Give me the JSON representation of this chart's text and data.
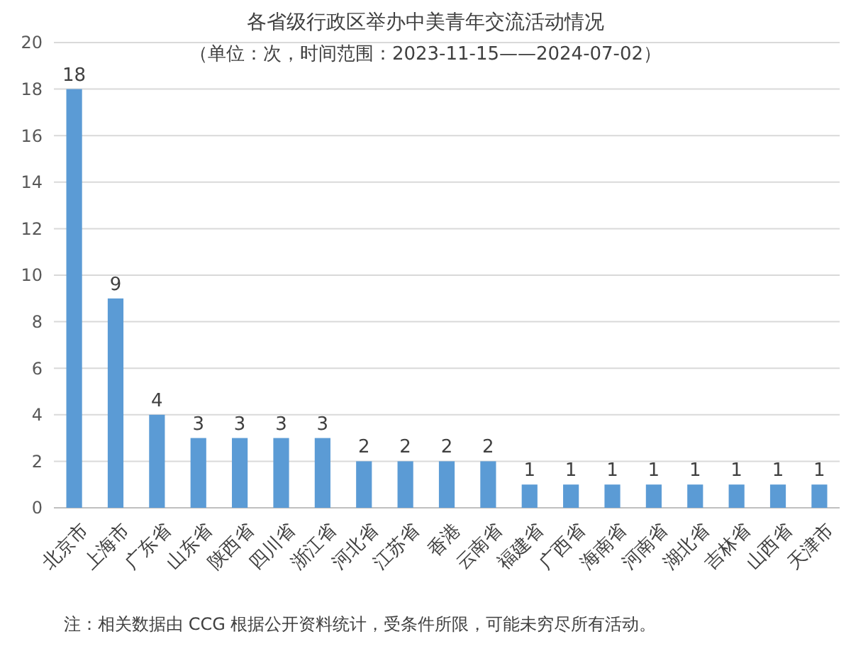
{
  "chart_data": {
    "type": "bar",
    "title": "各省级行政区举办中美青年交流活动情况",
    "subtitle": "（单位：次，时间范围：2023-11-15——2024-07-02）",
    "categories": [
      "北京市",
      "上海市",
      "广东省",
      "山东省",
      "陕西省",
      "四川省",
      "浙江省",
      "河北省",
      "江苏省",
      "香港",
      "云南省",
      "福建省",
      "广西省",
      "海南省",
      "河南省",
      "湖北省",
      "吉林省",
      "山西省",
      "天津市"
    ],
    "values": [
      18,
      9,
      4,
      3,
      3,
      3,
      3,
      2,
      2,
      2,
      2,
      1,
      1,
      1,
      1,
      1,
      1,
      1,
      1
    ],
    "color": "#5b9bd5",
    "ylim": [
      0,
      20
    ],
    "yticks": [
      0,
      2,
      4,
      6,
      8,
      10,
      12,
      14,
      16,
      18,
      20
    ],
    "grid": "y",
    "data_labels": true,
    "annotations": [
      "注：相关数据由 CCG 根据公开资料统计，受条件所限，可能未穷尽所有活动。"
    ]
  }
}
